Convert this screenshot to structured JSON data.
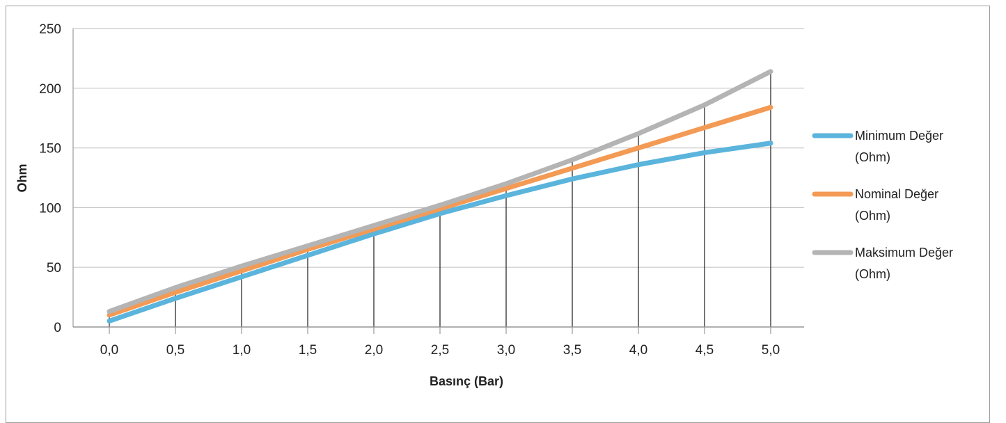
{
  "chart_data": {
    "type": "line",
    "xlabel": "Basınç (Bar)",
    "ylabel": "Ohm",
    "x": [
      "0,0",
      "0,5",
      "1,0",
      "1,5",
      "2,0",
      "2,5",
      "3,0",
      "3,5",
      "4,0",
      "4,5",
      "5,0"
    ],
    "y_ticks": [
      "0",
      "50",
      "100",
      "150",
      "200",
      "250"
    ],
    "ylim": [
      0,
      250
    ],
    "grid": "horizontal",
    "legend": "right",
    "series": [
      {
        "name": "Minimum Değer (Ohm)",
        "name_lines": [
          "Minimum Değer",
          "(Ohm)"
        ],
        "color": "#5ab4dc",
        "values": [
          5,
          24,
          42,
          60,
          78,
          95,
          110,
          124,
          136,
          146,
          154
        ]
      },
      {
        "name": "Nominal Değer (Ohm)",
        "name_lines": [
          "Nominal Değer",
          "(Ohm)"
        ],
        "color": "#f39a55",
        "values": [
          10,
          29,
          47,
          65,
          82,
          99,
          116,
          133,
          150,
          167,
          184
        ]
      },
      {
        "name": "Maksimum Değer (Ohm)",
        "name_lines": [
          "Maksimum Değer",
          "(Ohm)"
        ],
        "color": "#b4b4b4",
        "values": [
          13,
          33,
          51,
          68,
          85,
          102,
          120,
          140,
          162,
          186,
          214
        ]
      }
    ]
  }
}
